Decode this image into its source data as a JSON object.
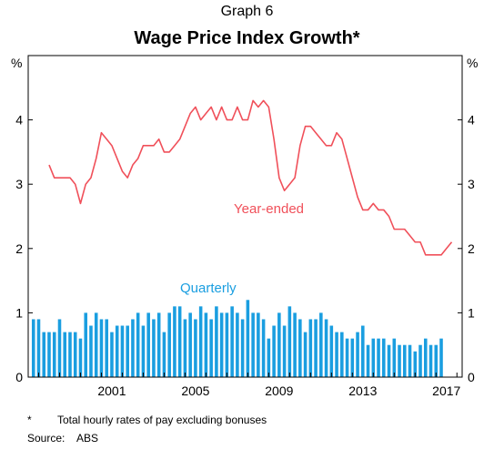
{
  "header": {
    "graph_label": "Graph 6",
    "title": "Wage Price Index Growth*"
  },
  "footnote": {
    "mark": "*",
    "text": "Total hourly rates of pay excluding bonuses"
  },
  "source": {
    "label": "Source:",
    "text": "ABS"
  },
  "colors": {
    "line": "#f0505a",
    "bars": "#1a9ee0",
    "axis": "#000000"
  },
  "chart_data": {
    "type": "bar+line",
    "title": "Wage Price Index Growth*",
    "left_unit": "%",
    "right_unit": "%",
    "ylim": [
      0,
      5
    ],
    "yticks": [
      0,
      1,
      2,
      3,
      4
    ],
    "xlim": [
      1997.5,
      2018.25
    ],
    "xticks": [
      {
        "value": 2001,
        "label": "2001"
      },
      {
        "value": 2005,
        "label": "2005"
      },
      {
        "value": 2009,
        "label": "2009"
      },
      {
        "value": 2013,
        "label": "2013"
      },
      {
        "value": 2017,
        "label": "2017"
      }
    ],
    "series": [
      {
        "name": "Year-ended",
        "kind": "line",
        "x_start": 1998.5,
        "x_step": 0.25,
        "values": [
          3.3,
          3.1,
          3.1,
          3.1,
          3.1,
          3.0,
          2.7,
          3.0,
          3.1,
          3.4,
          3.8,
          3.7,
          3.6,
          3.4,
          3.2,
          3.1,
          3.3,
          3.4,
          3.6,
          3.6,
          3.6,
          3.7,
          3.5,
          3.5,
          3.6,
          3.7,
          3.9,
          4.1,
          4.2,
          4.0,
          4.1,
          4.2,
          4.0,
          4.2,
          4.0,
          4.0,
          4.2,
          4.0,
          4.0,
          4.3,
          4.2,
          4.3,
          4.2,
          3.7,
          3.1,
          2.9,
          3.0,
          3.1,
          3.6,
          3.9,
          3.9,
          3.8,
          3.7,
          3.6,
          3.6,
          3.8,
          3.7,
          3.4,
          3.1,
          2.8,
          2.6,
          2.6,
          2.7,
          2.6,
          2.6,
          2.5,
          2.3,
          2.3,
          2.3,
          2.2,
          2.1,
          2.1,
          1.9,
          1.9,
          1.9,
          1.9,
          2.0,
          2.1
        ]
      },
      {
        "name": "Quarterly",
        "kind": "bar",
        "x_start": 1997.75,
        "x_step": 0.25,
        "values": [
          0.9,
          0.9,
          0.7,
          0.7,
          0.7,
          0.9,
          0.7,
          0.7,
          0.7,
          0.6,
          1.0,
          0.8,
          1.0,
          0.9,
          0.9,
          0.7,
          0.8,
          0.8,
          0.8,
          0.9,
          1.0,
          0.8,
          1.0,
          0.9,
          1.0,
          0.7,
          1.0,
          1.1,
          1.1,
          0.9,
          1.0,
          0.9,
          1.1,
          1.0,
          0.9,
          1.1,
          1.0,
          1.0,
          1.1,
          1.0,
          0.9,
          1.2,
          1.0,
          1.0,
          0.9,
          0.6,
          0.8,
          1.0,
          0.8,
          1.1,
          1.0,
          0.9,
          0.7,
          0.9,
          0.9,
          1.0,
          0.9,
          0.8,
          0.7,
          0.7,
          0.6,
          0.6,
          0.7,
          0.8,
          0.5,
          0.6,
          0.6,
          0.6,
          0.5,
          0.6,
          0.5,
          0.5,
          0.5,
          0.4,
          0.5,
          0.6,
          0.5,
          0.5,
          0.6
        ]
      }
    ],
    "annotations": [
      {
        "text": "Year-ended",
        "series": "Year-ended"
      },
      {
        "text": "Quarterly",
        "series": "Quarterly"
      }
    ]
  }
}
